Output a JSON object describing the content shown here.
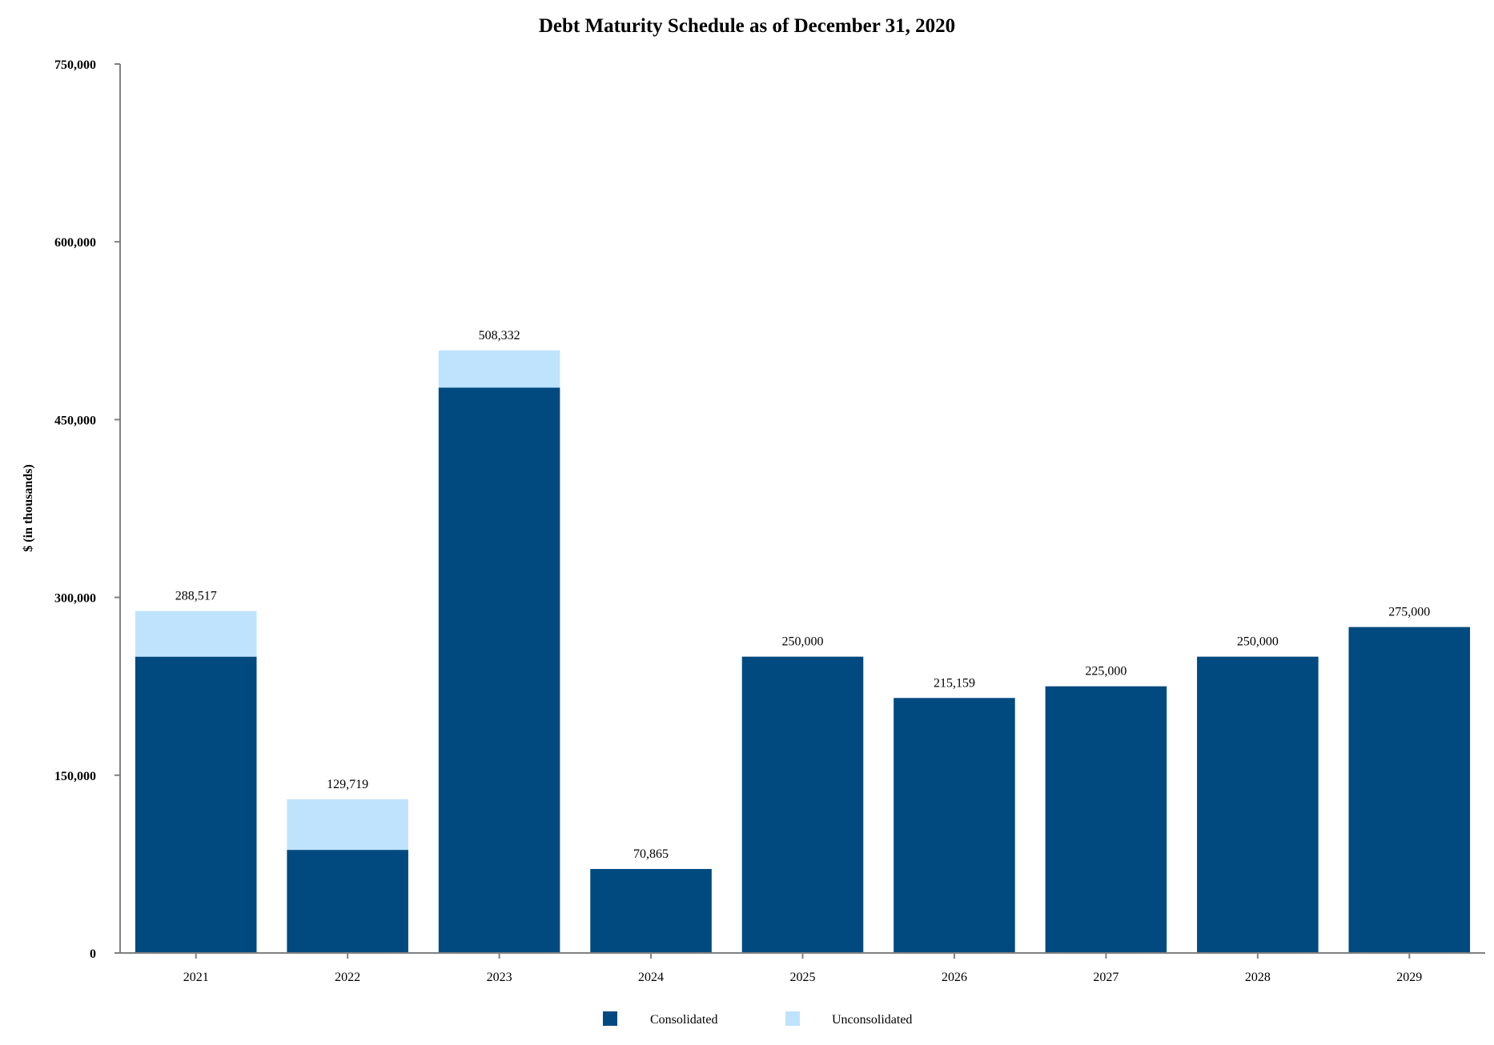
{
  "chart_data": {
    "type": "bar",
    "stacked": true,
    "title": "Debt Maturity Schedule as of December 31, 2020",
    "xlabel": "",
    "ylabel": "$ (in thousands)",
    "ylim": [
      0,
      750000
    ],
    "yticks": [
      0,
      150000,
      300000,
      450000,
      600000,
      750000
    ],
    "ytick_labels": [
      "0",
      "150,000",
      "300,000",
      "450,000",
      "600,000",
      "750,000"
    ],
    "categories": [
      "2021",
      "2022",
      "2023",
      "2024",
      "2025",
      "2026",
      "2027",
      "2028",
      "2029"
    ],
    "series": [
      {
        "name": "Consolidated",
        "color": "#004a7f",
        "values": [
          250000,
          87000,
          477000,
          70865,
          250000,
          215159,
          225000,
          250000,
          275000
        ]
      },
      {
        "name": "Unconsolidated",
        "color": "#bfe3fc",
        "values": [
          38517,
          42719,
          31332,
          0,
          0,
          0,
          0,
          0,
          0
        ]
      }
    ],
    "totals": [
      288517,
      129719,
      508332,
      70865,
      250000,
      215159,
      225000,
      250000,
      275000
    ],
    "total_labels": [
      "288,517",
      "129,719",
      "508,332",
      "70,865",
      "250,000",
      "215,159",
      "225,000",
      "250,000",
      "275,000"
    ],
    "legend_position": "bottom-center",
    "grid": false
  }
}
